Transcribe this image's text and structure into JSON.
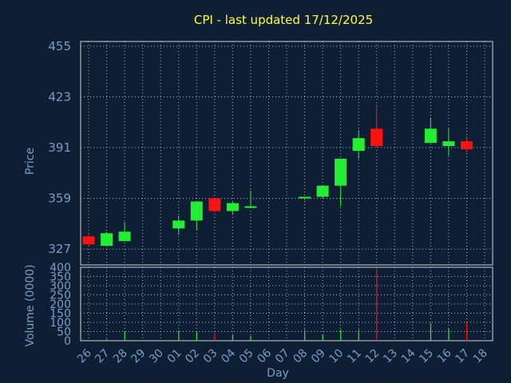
{
  "title": "CPI - last updated 17/12/2025",
  "chart_data": [
    {
      "type": "candlestick",
      "ylabel": "Price",
      "ylim": [
        317,
        458
      ],
      "yticks": [
        327,
        359,
        391,
        423,
        455
      ],
      "grid": true,
      "colors": {
        "up": "#22ee33",
        "down": "#ff1111"
      },
      "x": [
        "26",
        "27",
        "28",
        "29",
        "30",
        "01",
        "02",
        "03",
        "04",
        "05",
        "06",
        "07",
        "08",
        "09",
        "10",
        "11",
        "12",
        "13",
        "14",
        "15",
        "16",
        "17",
        "18"
      ],
      "candles": [
        {
          "x": "26",
          "open": 335,
          "close": 330,
          "high": 336,
          "low": 329
        },
        {
          "x": "27",
          "open": 329,
          "close": 337,
          "high": 338,
          "low": 329
        },
        {
          "x": "28",
          "open": 332,
          "close": 338,
          "high": 344,
          "low": 332
        },
        {
          "x": "01",
          "open": 340,
          "close": 345,
          "high": 348,
          "low": 336
        },
        {
          "x": "02",
          "open": 345,
          "close": 357,
          "high": 357,
          "low": 339
        },
        {
          "x": "03",
          "open": 359,
          "close": 351,
          "high": 359,
          "low": 350
        },
        {
          "x": "04",
          "open": 351,
          "close": 356,
          "high": 357,
          "low": 349
        },
        {
          "x": "05",
          "open": 353,
          "close": 354,
          "high": 364,
          "low": 353
        },
        {
          "x": "08",
          "open": 359,
          "close": 360,
          "high": 360,
          "low": 358
        },
        {
          "x": "09",
          "open": 360,
          "close": 367,
          "high": 367,
          "low": 359
        },
        {
          "x": "10",
          "open": 367,
          "close": 384,
          "high": 384,
          "low": 354
        },
        {
          "x": "11",
          "open": 389,
          "close": 397,
          "high": 402,
          "low": 384
        },
        {
          "x": "12",
          "open": 403,
          "close": 392,
          "high": 418,
          "low": 391
        },
        {
          "x": "15",
          "open": 394,
          "close": 403,
          "high": 410,
          "low": 394
        },
        {
          "x": "16",
          "open": 392,
          "close": 395,
          "high": 403,
          "low": 386
        },
        {
          "x": "17",
          "open": 395,
          "close": 390,
          "high": 397,
          "low": 388
        }
      ]
    },
    {
      "type": "bar",
      "ylabel": "Volume (0000)",
      "xlabel": "Day",
      "ylim": [
        0,
        400
      ],
      "yticks": [
        0,
        50,
        100,
        150,
        200,
        250,
        300,
        350,
        400
      ],
      "grid": true,
      "bars": [
        {
          "x": "26",
          "value": 0,
          "color": "#ff1111"
        },
        {
          "x": "27",
          "value": 8,
          "color": "#22ee33"
        },
        {
          "x": "28",
          "value": 50,
          "color": "#22ee33"
        },
        {
          "x": "01",
          "value": 55,
          "color": "#22ee33"
        },
        {
          "x": "02",
          "value": 45,
          "color": "#22ee33"
        },
        {
          "x": "03",
          "value": 42,
          "color": "#ff1111"
        },
        {
          "x": "04",
          "value": 30,
          "color": "#22ee33"
        },
        {
          "x": "05",
          "value": 25,
          "color": "#22ee33"
        },
        {
          "x": "08",
          "value": 60,
          "color": "#22ee33"
        },
        {
          "x": "09",
          "value": 35,
          "color": "#22ee33"
        },
        {
          "x": "10",
          "value": 60,
          "color": "#22ee33"
        },
        {
          "x": "11",
          "value": 60,
          "color": "#22ee33"
        },
        {
          "x": "12",
          "value": 390,
          "color": "#ff1111"
        },
        {
          "x": "15",
          "value": 95,
          "color": "#22ee33"
        },
        {
          "x": "16",
          "value": 65,
          "color": "#22ee33"
        },
        {
          "x": "17",
          "value": 95,
          "color": "#ff1111"
        }
      ]
    }
  ]
}
